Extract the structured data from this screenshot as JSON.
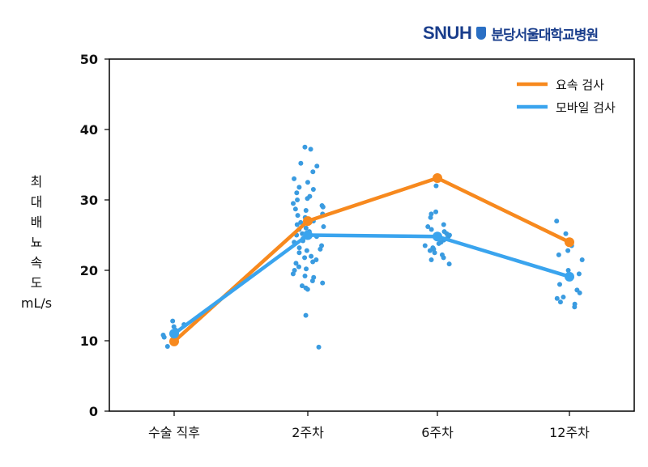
{
  "logo": {
    "en": "SNUH",
    "ko": "분당서울대학교병원"
  },
  "chart_data": {
    "type": "line",
    "title": "",
    "ylabel_lines": [
      "최",
      "대",
      "배",
      "뇨",
      "속",
      "도"
    ],
    "ylabel_unit": "mL/s",
    "xlabel": "",
    "ylim": [
      0,
      50
    ],
    "yticks": [
      0,
      10,
      20,
      30,
      40,
      50
    ],
    "categories": [
      "수술 직후",
      "2주차",
      "6주차",
      "12주차"
    ],
    "grid": false,
    "legend_position": "top-right",
    "series": [
      {
        "name": "요속 검사",
        "color": "#f7891e",
        "values": [
          9.9,
          27.0,
          33.1,
          24.0
        ]
      },
      {
        "name": "모바일 검사",
        "color": "#3aa4ee",
        "values": [
          11.0,
          25.0,
          24.8,
          19.1
        ]
      }
    ],
    "scatter_color": "#3a9be0",
    "scatter": [
      [
        12.0,
        11.5,
        10.5,
        9.2,
        12.8,
        11.2,
        10.8,
        12.3
      ],
      [
        37.2,
        37.5,
        35.2,
        34.8,
        34.0,
        33.0,
        32.5,
        31.8,
        31.5,
        31.0,
        30.5,
        30.2,
        30.0,
        29.5,
        29.2,
        29.0,
        28.7,
        28.5,
        28.0,
        27.8,
        27.5,
        27.2,
        27.0,
        26.8,
        26.5,
        26.2,
        26.0,
        25.8,
        25.5,
        25.2,
        25.0,
        24.8,
        24.5,
        24.2,
        24.0,
        23.5,
        23.2,
        23.0,
        22.8,
        22.5,
        22.0,
        21.8,
        21.5,
        21.2,
        21.0,
        20.5,
        20.2,
        20.0,
        19.5,
        19.2,
        19.0,
        18.5,
        18.2,
        17.8,
        17.5,
        17.3,
        13.6,
        9.1
      ],
      [
        32.0,
        28.3,
        28.0,
        27.5,
        26.5,
        26.2,
        25.8,
        25.5,
        25.2,
        25.0,
        24.8,
        24.5,
        24.3,
        24.0,
        23.8,
        23.5,
        23.2,
        23.0,
        22.8,
        22.5,
        22.2,
        21.8,
        21.5,
        20.9
      ],
      [
        27.0,
        25.2,
        23.5,
        22.8,
        22.2,
        21.5,
        20.0,
        19.5,
        19.0,
        18.8,
        18.0,
        17.2,
        16.8,
        16.2,
        16.0,
        15.5,
        15.2,
        14.8
      ]
    ]
  }
}
